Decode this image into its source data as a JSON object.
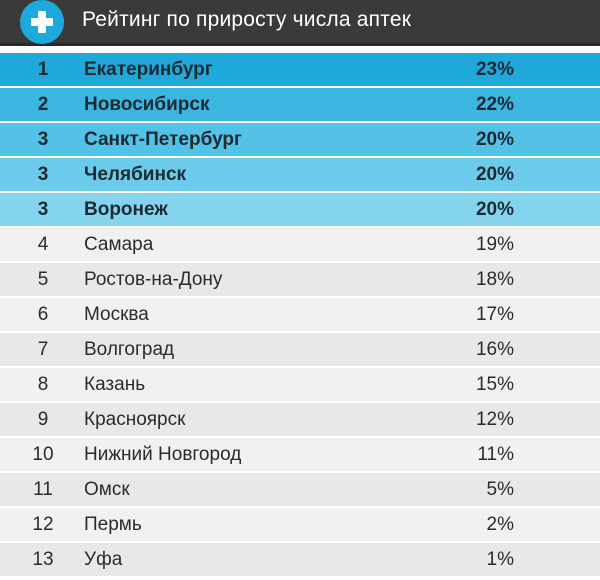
{
  "header": {
    "title": "Рейтинг по приросту числа аптек",
    "icon": "plus-icon"
  },
  "colors": {
    "header_bg": "#3a3a3a",
    "accent": "#1ea9dc",
    "top_rows": [
      "#1fa8da",
      "#3ab6e1",
      "#54c2e6",
      "#6ccbea",
      "#84d4ee"
    ],
    "row_light": "#f1f1f1",
    "row_alt": "#e8e8e8"
  },
  "chart_data": {
    "type": "table",
    "title": "Рейтинг по приросту числа аптек",
    "columns": [
      "rank",
      "city",
      "growth"
    ],
    "rows": [
      {
        "rank": "1",
        "city": "Екатеринбург",
        "value": "23%"
      },
      {
        "rank": "2",
        "city": "Новосибирск",
        "value": "22%"
      },
      {
        "rank": "3",
        "city": "Санкт-Петербург",
        "value": "20%"
      },
      {
        "rank": "3",
        "city": "Челябинск",
        "value": "20%"
      },
      {
        "rank": "3",
        "city": "Воронеж",
        "value": "20%"
      },
      {
        "rank": "4",
        "city": "Самара",
        "value": "19%"
      },
      {
        "rank": "5",
        "city": "Ростов-на-Дону",
        "value": "18%"
      },
      {
        "rank": "6",
        "city": "Москва",
        "value": "17%"
      },
      {
        "rank": "7",
        "city": "Волгоград",
        "value": "16%"
      },
      {
        "rank": "8",
        "city": "Казань",
        "value": "15%"
      },
      {
        "rank": "9",
        "city": "Красноярск",
        "value": "12%"
      },
      {
        "rank": "10",
        "city": "Нижний Новгород",
        "value": "11%"
      },
      {
        "rank": "11",
        "city": "Омск",
        "value": "5%"
      },
      {
        "rank": "12",
        "city": "Пермь",
        "value": "2%"
      },
      {
        "rank": "13",
        "city": "Уфа",
        "value": "1%"
      }
    ]
  }
}
